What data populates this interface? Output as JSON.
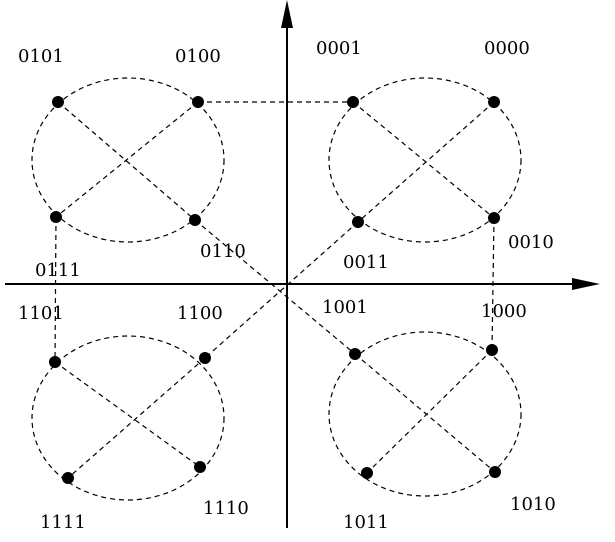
{
  "labels": {
    "q2_tl": "0101",
    "q2_tr": "0100",
    "q2_bl": "0111",
    "q2_br": "0110",
    "q1_tl": "0001",
    "q1_tr": "0000",
    "q1_bl": "0011",
    "q1_br": "0010",
    "q3_tl": "1101",
    "q3_tr": "1100",
    "q3_bl": "1111",
    "q3_br": "1110",
    "q4_tl": "1001",
    "q4_tr": "1000",
    "q4_bl": "1011",
    "q4_br": "1010"
  }
}
